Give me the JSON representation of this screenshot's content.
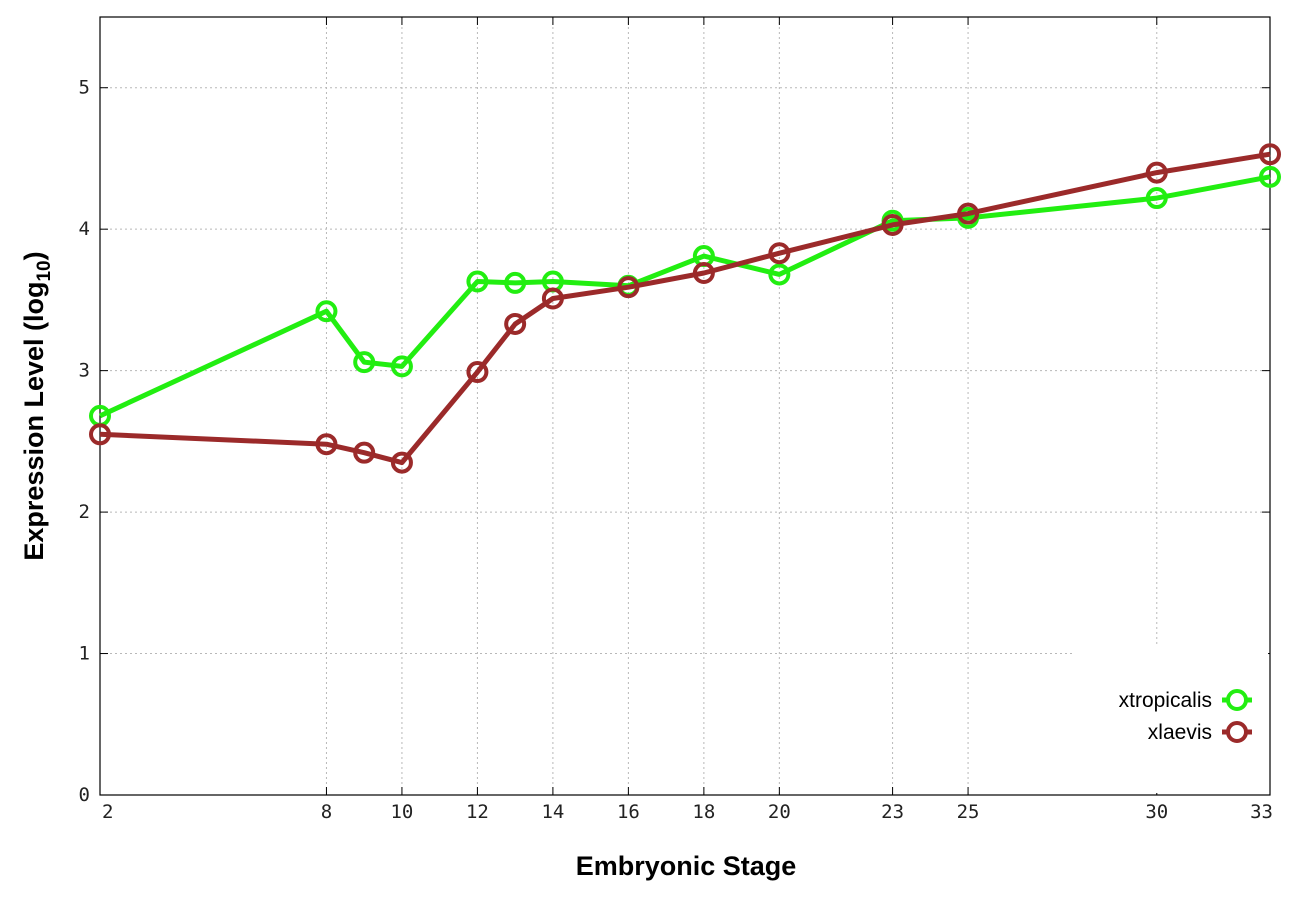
{
  "chart_data": {
    "type": "line",
    "xlabel": "Embryonic Stage",
    "ylabel_main": "Expression Level (log",
    "ylabel_sub": "10",
    "ylabel_close": ")",
    "x_ticks": [
      2,
      8,
      10,
      12,
      14,
      16,
      18,
      20,
      23,
      25,
      30,
      33
    ],
    "y_ticks": [
      0,
      1,
      2,
      3,
      4,
      5
    ],
    "xlim": [
      2,
      33
    ],
    "ylim": [
      0,
      5.5
    ],
    "grid": true,
    "legend_position": "bottom-right",
    "series": [
      {
        "name": "xtropicalis",
        "color": "#22ee11",
        "x": [
          2,
          8,
          9,
          10,
          12,
          13,
          14,
          16,
          18,
          20,
          23,
          25,
          30,
          33
        ],
        "y": [
          2.68,
          3.42,
          3.06,
          3.03,
          3.63,
          3.62,
          3.63,
          3.6,
          3.81,
          3.68,
          4.06,
          4.08,
          4.22,
          4.37
        ]
      },
      {
        "name": "xlaevis",
        "color": "#9b2a2a",
        "x": [
          2,
          8,
          9,
          10,
          12,
          13,
          14,
          16,
          18,
          20,
          23,
          25,
          30,
          33
        ],
        "y": [
          2.55,
          2.48,
          2.42,
          2.35,
          2.99,
          3.33,
          3.51,
          3.59,
          3.69,
          3.83,
          4.03,
          4.11,
          4.4,
          4.53
        ]
      }
    ]
  }
}
